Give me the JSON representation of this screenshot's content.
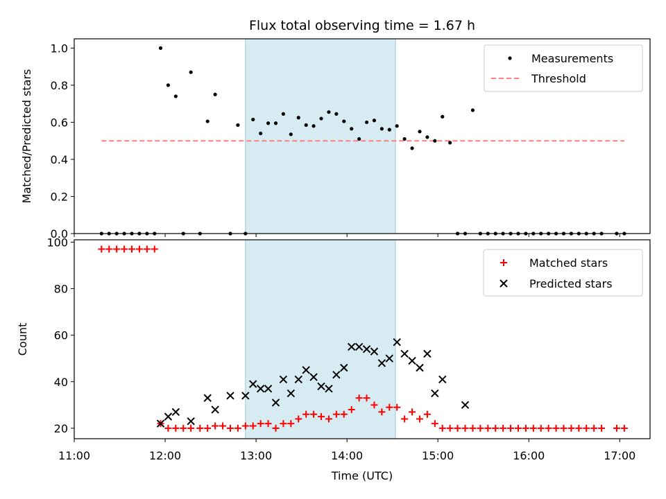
{
  "chart_data": [
    {
      "type": "scatter",
      "title": "Flux total observing time = 1.67 h",
      "xlabel": "",
      "ylabel": "Matched/Predicted stars",
      "xlim": [
        "11:00",
        "17:20"
      ],
      "ylim": [
        0,
        1.05
      ],
      "yticks": [
        "0.0",
        "0.2",
        "0.4",
        "0.6",
        "0.8",
        "1.0"
      ],
      "shaded_interval": [
        "12:53",
        "14:32"
      ],
      "legend_position": "top-right",
      "series": [
        {
          "name": "Measurements",
          "marker": "dot",
          "color": "#000000",
          "x": [
            "11:18",
            "11:23",
            "11:28",
            "11:33",
            "11:38",
            "11:43",
            "11:48",
            "11:53",
            "11:57",
            "12:02",
            "12:07",
            "12:12",
            "12:17",
            "12:23",
            "12:28",
            "12:33",
            "12:43",
            "12:48",
            "12:53",
            "12:58",
            "13:03",
            "13:08",
            "13:13",
            "13:18",
            "13:23",
            "13:28",
            "13:33",
            "13:38",
            "13:43",
            "13:48",
            "13:53",
            "13:58",
            "14:03",
            "14:08",
            "14:13",
            "14:18",
            "14:23",
            "14:28",
            "14:33",
            "14:38",
            "14:43",
            "14:48",
            "14:53",
            "14:58",
            "15:03",
            "15:08",
            "15:13",
            "15:18",
            "15:23",
            "15:28",
            "15:33",
            "15:38",
            "15:43",
            "15:48",
            "15:53",
            "15:58",
            "16:03",
            "16:08",
            "16:13",
            "16:18",
            "16:23",
            "16:28",
            "16:33",
            "16:38",
            "16:43",
            "16:48",
            "16:58",
            "17:03"
          ],
          "y": [
            0,
            0,
            0,
            0,
            0,
            0,
            0,
            0,
            1.0,
            0.8,
            0.74,
            0,
            0.87,
            0,
            0.605,
            0.75,
            0,
            0.585,
            0,
            0.615,
            0.54,
            0.595,
            0.595,
            0.645,
            0.535,
            0.625,
            0.585,
            0.58,
            0.62,
            0.655,
            0.645,
            0.605,
            0.565,
            0.51,
            0.6,
            0.61,
            0.565,
            0.56,
            0.58,
            0.51,
            0.46,
            0.55,
            0.52,
            0.5,
            0.63,
            0.49,
            0,
            0,
            0.665,
            0,
            0,
            0,
            0,
            0,
            0,
            0,
            0,
            0,
            0,
            0,
            0,
            0,
            0,
            0,
            0,
            0,
            0,
            0
          ]
        },
        {
          "name": "Threshold",
          "line_style": "dashed",
          "color": "#ff7f7f",
          "x": [
            "11:18",
            "17:03"
          ],
          "y": [
            0.5,
            0.5
          ]
        }
      ]
    },
    {
      "type": "scatter",
      "title": "",
      "xlabel": "Time (UTC)",
      "ylabel": "Count",
      "xlim": [
        "11:00",
        "17:20"
      ],
      "ylim": [
        15.5,
        101
      ],
      "xticks": [
        "11:00",
        "12:00",
        "13:00",
        "14:00",
        "15:00",
        "16:00",
        "17:00"
      ],
      "yticks": [
        "20",
        "40",
        "60",
        "80",
        "100"
      ],
      "shaded_interval": [
        "12:53",
        "14:32"
      ],
      "legend_position": "top-right",
      "series": [
        {
          "name": "Matched stars",
          "marker": "plus",
          "color": "#ff0000",
          "x": [
            "11:18",
            "11:23",
            "11:28",
            "11:33",
            "11:38",
            "11:43",
            "11:48",
            "11:53",
            "11:57",
            "12:02",
            "12:07",
            "12:12",
            "12:17",
            "12:23",
            "12:28",
            "12:33",
            "12:38",
            "12:43",
            "12:48",
            "12:53",
            "12:58",
            "13:03",
            "13:08",
            "13:13",
            "13:18",
            "13:23",
            "13:28",
            "13:33",
            "13:38",
            "13:43",
            "13:48",
            "13:53",
            "13:58",
            "14:03",
            "14:08",
            "14:13",
            "14:18",
            "14:23",
            "14:28",
            "14:33",
            "14:38",
            "14:43",
            "14:48",
            "14:53",
            "14:58",
            "15:03",
            "15:08",
            "15:13",
            "15:18",
            "15:23",
            "15:28",
            "15:33",
            "15:38",
            "15:43",
            "15:48",
            "15:53",
            "15:58",
            "16:03",
            "16:08",
            "16:13",
            "16:18",
            "16:23",
            "16:28",
            "16:33",
            "16:38",
            "16:43",
            "16:48",
            "16:58",
            "17:03"
          ],
          "y": [
            97,
            97,
            97,
            97,
            97,
            97,
            97,
            97,
            22,
            20,
            20,
            20,
            20,
            20,
            20,
            21,
            21,
            20,
            20,
            21,
            21,
            22,
            22,
            20,
            22,
            22,
            24,
            26,
            26,
            25,
            24,
            26,
            26,
            28,
            33,
            33,
            30,
            27,
            29,
            29,
            24,
            27,
            24,
            26,
            22,
            20,
            20,
            20,
            20,
            20,
            20,
            20,
            20,
            20,
            20,
            20,
            20,
            20,
            20,
            20,
            20,
            20,
            20,
            20,
            20,
            20,
            20,
            20,
            20
          ]
        },
        {
          "name": "Predicted stars",
          "marker": "x",
          "color": "#000000",
          "x": [
            "11:57",
            "12:02",
            "12:07",
            "12:17",
            "12:28",
            "12:33",
            "12:43",
            "12:53",
            "12:58",
            "13:03",
            "13:08",
            "13:13",
            "13:18",
            "13:23",
            "13:28",
            "13:33",
            "13:38",
            "13:43",
            "13:48",
            "13:53",
            "13:58",
            "14:03",
            "14:08",
            "14:13",
            "14:18",
            "14:23",
            "14:28",
            "14:33",
            "14:38",
            "14:43",
            "14:48",
            "14:53",
            "14:58",
            "15:03",
            "15:18"
          ],
          "y": [
            22,
            25,
            27,
            23,
            33,
            28,
            34,
            34,
            39,
            37,
            37,
            31,
            41,
            35,
            41,
            45,
            42,
            38,
            37,
            43,
            46,
            55,
            55,
            54,
            53,
            48,
            50,
            57,
            52,
            49,
            46,
            52,
            35,
            41,
            30
          ]
        }
      ]
    }
  ]
}
